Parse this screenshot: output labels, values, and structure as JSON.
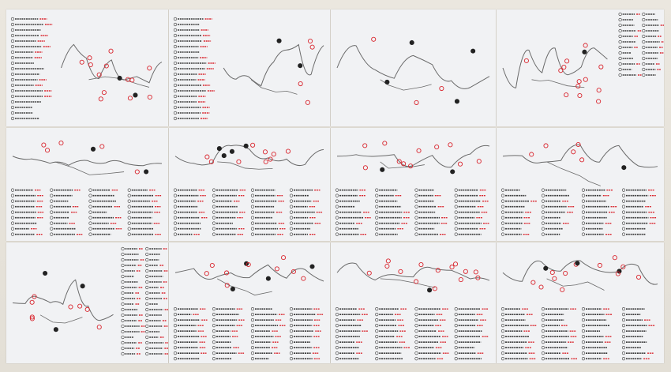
{
  "colors": {
    "wall": "#e6e2da",
    "paper": "#f1f2f4",
    "ink": "#3a3a3a",
    "red_ink": "#d9262e",
    "river": "#6a6a6a"
  },
  "sheets": [
    {
      "legend": "left"
    },
    {
      "legend": "left"
    },
    {
      "legend": "none"
    },
    {
      "legend": "right"
    },
    {
      "legend": "bottom"
    },
    {
      "legend": "bottom"
    },
    {
      "legend": "bottom"
    },
    {
      "legend": "bottom"
    },
    {
      "legend": "middle"
    },
    {
      "legend": "bottom"
    },
    {
      "legend": "bottom"
    },
    {
      "legend": "bottom"
    }
  ]
}
